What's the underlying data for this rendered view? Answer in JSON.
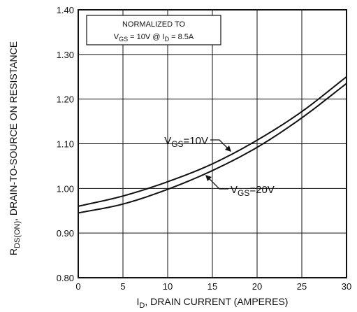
{
  "chart_data": {
    "type": "line",
    "title": "",
    "xlabel": {
      "main": "I",
      "sub": "D",
      "rest": ", DRAIN CURRENT (AMPERES)"
    },
    "ylabel": {
      "main": "R",
      "sub": "DS(ON)",
      "rest": ", DRAIN-TO-SOURCE ON RESISTANCE"
    },
    "xlim": [
      0,
      30
    ],
    "ylim": [
      0.8,
      1.4
    ],
    "x_ticks": [
      "0",
      "5",
      "10",
      "15",
      "20",
      "25",
      "30"
    ],
    "y_ticks": [
      "0.80",
      "0.90",
      "1.00",
      "1.10",
      "1.20",
      "1.30",
      "1.40"
    ],
    "grid": true,
    "note": {
      "line1": "NORMALIZED TO",
      "line2": {
        "v": "V",
        "vsub": "GS",
        "vrest": " = 10V  @  I",
        "isub": "D",
        "irest": " = 8.5A"
      }
    },
    "series": [
      {
        "name": {
          "main": "V",
          "sub": "GS",
          "rest": "=10V"
        },
        "x": [
          0,
          5,
          10,
          15,
          20,
          25,
          30
        ],
        "y": [
          0.96,
          0.983,
          1.015,
          1.055,
          1.108,
          1.172,
          1.25
        ]
      },
      {
        "name": {
          "main": "V",
          "sub": "GS",
          "rest": "=20V"
        },
        "x": [
          0,
          5,
          10,
          15,
          20,
          25,
          30
        ],
        "y": [
          0.945,
          0.965,
          0.998,
          1.04,
          1.092,
          1.158,
          1.235
        ]
      }
    ]
  }
}
